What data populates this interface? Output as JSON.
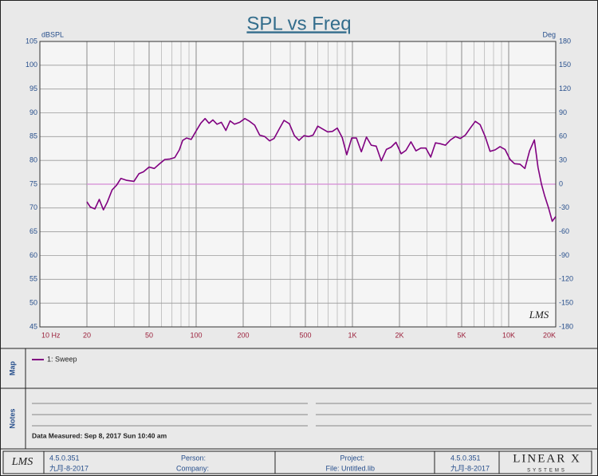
{
  "chart_data": {
    "type": "line",
    "title": "SPL vs Freq",
    "y_label": "dBSPL",
    "y2_label": "Deg",
    "watermark": "LMS",
    "log_x": true,
    "grid": true,
    "xlim": [
      10,
      20000
    ],
    "xticks": [
      {
        "value": 10,
        "label": "10 Hz"
      },
      20,
      50,
      100,
      200,
      500,
      {
        "value": 1000,
        "label": "1K"
      },
      {
        "value": 2000,
        "label": "2K"
      },
      {
        "value": 5000,
        "label": "5K"
      },
      {
        "value": 10000,
        "label": "10K"
      },
      {
        "value": 20000,
        "label": "20K"
      }
    ],
    "xminor": [
      30,
      40,
      60,
      70,
      80,
      90,
      300,
      400,
      600,
      700,
      800,
      900,
      3000,
      4000,
      6000,
      7000,
      8000,
      9000
    ],
    "ylim": [
      45,
      105
    ],
    "yticks": [
      45,
      50,
      55,
      60,
      65,
      70,
      75,
      80,
      85,
      90,
      95,
      100,
      105
    ],
    "y2lim": [
      -180,
      180
    ],
    "y2ticks": [
      -180,
      -150,
      -120,
      -90,
      -60,
      -30,
      0,
      30,
      60,
      90,
      120,
      150,
      180
    ],
    "reference_line": {
      "axis": "y2",
      "value": 0,
      "color": "#d58ad5"
    },
    "x": [
      20,
      21,
      22.5,
      24,
      25.5,
      27,
      29,
      31,
      33,
      36,
      40,
      43,
      46,
      50,
      54,
      58,
      63,
      68,
      73,
      78,
      82,
      87,
      93,
      100,
      107,
      114,
      121,
      128,
      136,
      145,
      155,
      165,
      176,
      190,
      205,
      220,
      237,
      255,
      275,
      295,
      315,
      340,
      365,
      395,
      425,
      455,
      490,
      525,
      560,
      600,
      645,
      695,
      745,
      800,
      860,
      920,
      990,
      1060,
      1140,
      1230,
      1320,
      1420,
      1530,
      1650,
      1770,
      1900,
      2050,
      2200,
      2370,
      2550,
      2740,
      2950,
      3170,
      3400,
      3660,
      3940,
      4240,
      4560,
      4900,
      5280,
      5680,
      6110,
      6570,
      7070,
      7600,
      8180,
      8800,
      9470,
      10200,
      10900,
      11800,
      12700,
      13600,
      14600,
      15400,
      16200,
      17000,
      18000,
      19000,
      20000
    ],
    "series": [
      {
        "name": "1: Sweep",
        "color": "#800080",
        "values": [
          71.3,
          70.2,
          69.8,
          71.8,
          69.6,
          71.2,
          73.8,
          74.8,
          76.2,
          75.8,
          75.6,
          77.2,
          77.6,
          78.6,
          78.3,
          79.2,
          80.2,
          80.3,
          80.6,
          82.2,
          84.2,
          84.7,
          84.4,
          86.2,
          87.8,
          88.8,
          87.8,
          88.5,
          87.6,
          88.0,
          86.3,
          88.3,
          87.6,
          88.0,
          88.8,
          88.2,
          87.4,
          85.3,
          85.0,
          84.1,
          84.6,
          86.6,
          88.4,
          87.7,
          85.2,
          84.2,
          85.2,
          85.0,
          85.3,
          87.2,
          86.6,
          86.0,
          86.1,
          86.8,
          84.8,
          81.2,
          84.7,
          84.7,
          81.8,
          84.9,
          83.2,
          83.0,
          79.9,
          82.3,
          82.8,
          83.8,
          81.4,
          82.1,
          83.9,
          82.0,
          82.6,
          82.6,
          80.7,
          83.7,
          83.5,
          83.2,
          84.3,
          85.0,
          84.6,
          85.3,
          86.8,
          88.2,
          87.5,
          85.0,
          81.9,
          82.2,
          82.9,
          82.3,
          80.2,
          79.3,
          79.2,
          78.3,
          82.0,
          84.3,
          78.5,
          75.0,
          72.5,
          70.0,
          67.2,
          68.2
        ]
      }
    ]
  },
  "map": {
    "label": "Map"
  },
  "notes": {
    "label": "Notes",
    "measured": "Data Measured: Sep 8, 2017 Sun 10:40 am"
  },
  "footer": {
    "logo": "LMS",
    "version": "4.5.0.351",
    "date": "九月-8-2017",
    "person": "Person:",
    "company": "Company:",
    "project": "Project:",
    "file": "File: Untitled.lib",
    "version2": "4.5.0.351",
    "date2": "九月-8-2017",
    "brand": "LINEAR X",
    "brand_sub": "SYSTEMS"
  }
}
